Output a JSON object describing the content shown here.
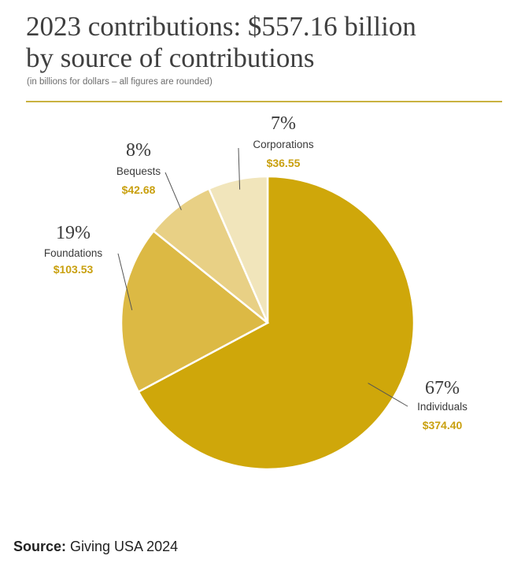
{
  "colors": {
    "Individuals": "#cfa70a",
    "Foundations": "#dcb944",
    "Bequests": "#e8d085",
    "Corporations": "#f1e5bb",
    "value_label": "#c9a00f",
    "rule": "#c9b241"
  },
  "chart_data": {
    "type": "pie",
    "title": "2023 contributions: $557.16 billion",
    "title_line2": "by source of contributions",
    "subtitle": "(in billions for dollars – all figures are rounded)",
    "total": 557.16,
    "start_angle_deg": 0,
    "direction": "clockwise",
    "slices": [
      {
        "name": "Individuals",
        "value": 374.4,
        "value_label": "$374.40",
        "percent_label": "67%"
      },
      {
        "name": "Foundations",
        "value": 103.53,
        "value_label": "$103.53",
        "percent_label": "19%"
      },
      {
        "name": "Bequests",
        "value": 42.68,
        "value_label": "$42.68",
        "percent_label": "8%"
      },
      {
        "name": "Corporations",
        "value": 36.55,
        "value_label": "$36.55",
        "percent_label": "7%"
      }
    ]
  },
  "source": {
    "label": "Source:",
    "text": " Giving USA 2024"
  }
}
